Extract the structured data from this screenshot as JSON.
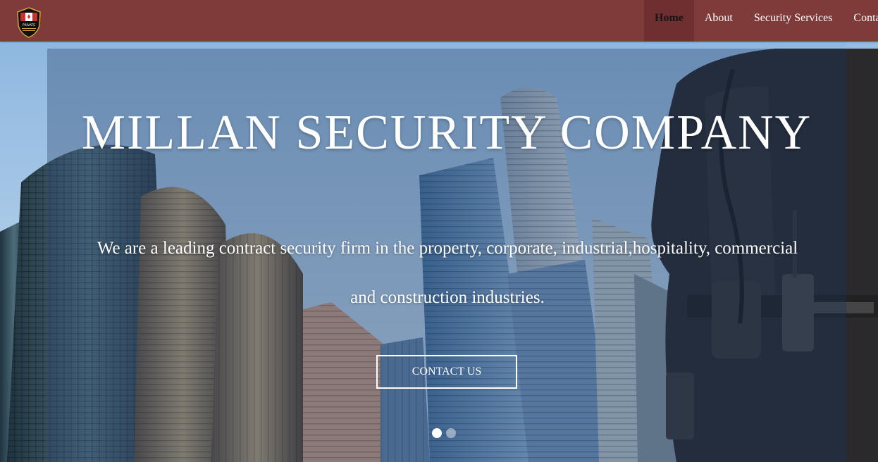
{
  "nav": {
    "items": [
      {
        "label": "Home",
        "active": true
      },
      {
        "label": "About",
        "active": false
      },
      {
        "label": "Security Services",
        "active": false
      },
      {
        "label": "Conta",
        "active": false
      }
    ]
  },
  "logo": {
    "icon": "shield-logo-icon",
    "text": "PRIVATE"
  },
  "hero": {
    "title": "MILLAN SECURITY COMPANY",
    "subtitle": "We are a leading contract security firm in the property, corporate, industrial,hospitality, commercial and construction industries.",
    "cta_label": "CONTACT US",
    "slides": 2,
    "active_slide": 1
  },
  "colors": {
    "navbar": "#7f3a3a",
    "navbar_active": "#6d2f2f",
    "text": "#ffffff"
  }
}
